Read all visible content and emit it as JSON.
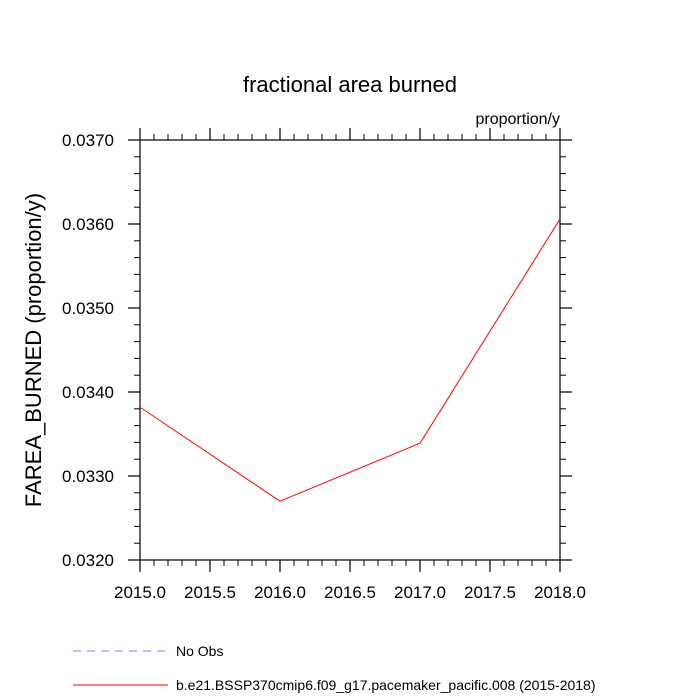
{
  "chart_data": {
    "type": "line",
    "title": "fractional area burned",
    "units_label": "proportion/y",
    "ylabel": "FAREA_BURNED  (proportion/y)",
    "xlabel": "",
    "xlim": [
      2015.0,
      2018.0
    ],
    "ylim": [
      0.032,
      0.037
    ],
    "x_ticks": [
      2015.0,
      2015.5,
      2016.0,
      2016.5,
      2017.0,
      2017.5,
      2018.0
    ],
    "x_tick_labels": [
      "2015.0",
      "2015.5",
      "2016.0",
      "2016.5",
      "2017.0",
      "2017.5",
      "2018.0"
    ],
    "y_ticks": [
      0.032,
      0.033,
      0.034,
      0.035,
      0.036,
      0.037
    ],
    "y_tick_labels": [
      "0.0320",
      "0.0330",
      "0.0340",
      "0.0350",
      "0.0360",
      "0.0370"
    ],
    "x_minor_step": 0.1,
    "y_minor_step": 0.0002,
    "grid": false,
    "legend_position": "bottom-left",
    "series": [
      {
        "name": "b.e21.BSSP370cmip6.f09_g17.pacemaker_pacific.008 (2015-2018)",
        "color": "#ff0000",
        "dash": "solid",
        "x": [
          2015.0,
          2016.0,
          2017.0,
          2018.0
        ],
        "y": [
          0.03382,
          0.0327,
          0.03339,
          0.03606
        ]
      }
    ],
    "legend": [
      {
        "label": "No Obs",
        "color": "#8080ff",
        "dash": "dashed"
      },
      {
        "label": "b.e21.BSSP370cmip6.f09_g17.pacemaker_pacific.008 (2015-2018)",
        "color": "#ff0000",
        "dash": "solid"
      }
    ]
  }
}
